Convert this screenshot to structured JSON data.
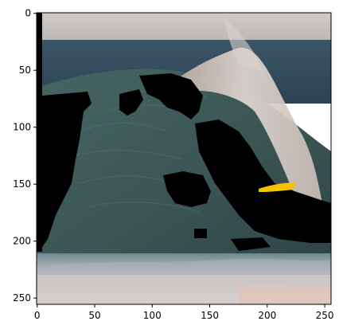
{
  "image": {
    "kind": "natural-image-plot",
    "content": "cresting ocean wave with spray and masked black regions",
    "x_axis": {
      "range": [
        0,
        255
      ],
      "ticks": [
        0,
        50,
        100,
        150,
        200,
        250
      ],
      "tick_labels": [
        "0",
        "50",
        "100",
        "150",
        "200",
        "250"
      ]
    },
    "y_axis": {
      "range": [
        0,
        255
      ],
      "inverted": true,
      "ticks": [
        0,
        50,
        100,
        150,
        200,
        250
      ],
      "tick_labels": [
        "0",
        "50",
        "100",
        "150",
        "200",
        "250"
      ]
    },
    "colors": {
      "sky": "#c9c2bd",
      "sea_far": "#2f4a5c",
      "wave_face": "#3d5a58",
      "wave_face_dark": "#2c4447",
      "spray": "#d9cfc9",
      "foam": "#d7d0cc",
      "mask": "#000000",
      "surfboard": "#f2c400",
      "frame": "#000000"
    }
  }
}
